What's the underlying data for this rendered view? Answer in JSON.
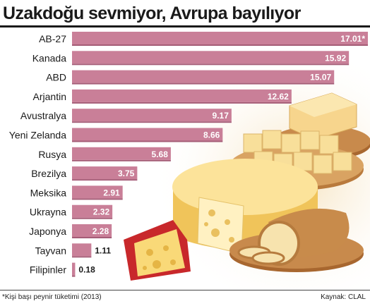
{
  "title": "Uzakdoğu sevmiyor, Avrupa bayılıyor",
  "footnote": "*Kişi başı peynir tüketimi (2013)",
  "source": "Kaynak: CLAL",
  "colors": {
    "bar": "#c97f98",
    "bar_shadow": "#a55d77",
    "bar_text_inside": "#ffffff",
    "bar_text_outside": "#1a1a1a",
    "title": "#1a1a1a",
    "background_glow": "#f6e3bf"
  },
  "chart_data": {
    "type": "bar",
    "orientation": "horizontal",
    "title": "Uzakdoğu sevmiyor, Avrupa bayılıyor",
    "categories": [
      "AB-27",
      "Kanada",
      "ABD",
      "Arjantin",
      "Avustralya",
      "Yeni Zelanda",
      "Rusya",
      "Brezilya",
      "Meksika",
      "Ukrayna",
      "Japonya",
      "Tayvan",
      "Filipinler"
    ],
    "values": [
      17.01,
      15.92,
      15.07,
      12.62,
      9.17,
      8.66,
      5.68,
      3.75,
      2.91,
      2.32,
      2.28,
      1.11,
      0.18
    ],
    "value_labels": [
      "17.01*",
      "15.92",
      "15.07",
      "12.62",
      "9.17",
      "8.66",
      "5.68",
      "3.75",
      "2.91",
      "2.32",
      "2.28",
      "1.11",
      "0.18"
    ],
    "xlim": [
      0,
      17.01
    ],
    "grid": false,
    "legend": "none"
  }
}
